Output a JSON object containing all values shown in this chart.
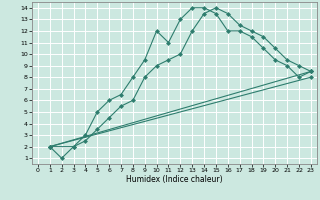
{
  "title": "",
  "xlabel": "Humidex (Indice chaleur)",
  "ylabel": "",
  "bg_color": "#cce8e0",
  "grid_color": "#ffffff",
  "line_color": "#2e7d6e",
  "xlim": [
    -0.5,
    23.5
  ],
  "ylim": [
    0.5,
    14.5
  ],
  "xticks": [
    0,
    1,
    2,
    3,
    4,
    5,
    6,
    7,
    8,
    9,
    10,
    11,
    12,
    13,
    14,
    15,
    16,
    17,
    18,
    19,
    20,
    21,
    22,
    23
  ],
  "yticks": [
    1,
    2,
    3,
    4,
    5,
    6,
    7,
    8,
    9,
    10,
    11,
    12,
    13,
    14
  ],
  "series": [
    {
      "x": [
        1,
        2,
        3,
        4,
        5,
        6,
        7,
        8,
        9,
        10,
        11,
        12,
        13,
        14,
        15,
        16,
        17,
        18,
        19,
        20,
        21,
        22,
        23
      ],
      "y": [
        2,
        1,
        2,
        3,
        5,
        6,
        6.5,
        8,
        9.5,
        12,
        11,
        13,
        14,
        14,
        13.5,
        12,
        12,
        11.5,
        10.5,
        9.5,
        9,
        8,
        8.5
      ]
    },
    {
      "x": [
        1,
        3,
        4,
        5,
        6,
        7,
        8,
        9,
        10,
        11,
        12,
        13,
        14,
        15,
        16,
        17,
        18,
        19,
        20,
        21,
        22,
        23
      ],
      "y": [
        2,
        2,
        2.5,
        3.5,
        4.5,
        5.5,
        6,
        8,
        9,
        9.5,
        10,
        12,
        13.5,
        14,
        13.5,
        12.5,
        12,
        11.5,
        10.5,
        9.5,
        9,
        8.5
      ]
    },
    {
      "x": [
        1,
        23
      ],
      "y": [
        2,
        8.5
      ]
    },
    {
      "x": [
        1,
        23
      ],
      "y": [
        2,
        8.0
      ]
    }
  ]
}
